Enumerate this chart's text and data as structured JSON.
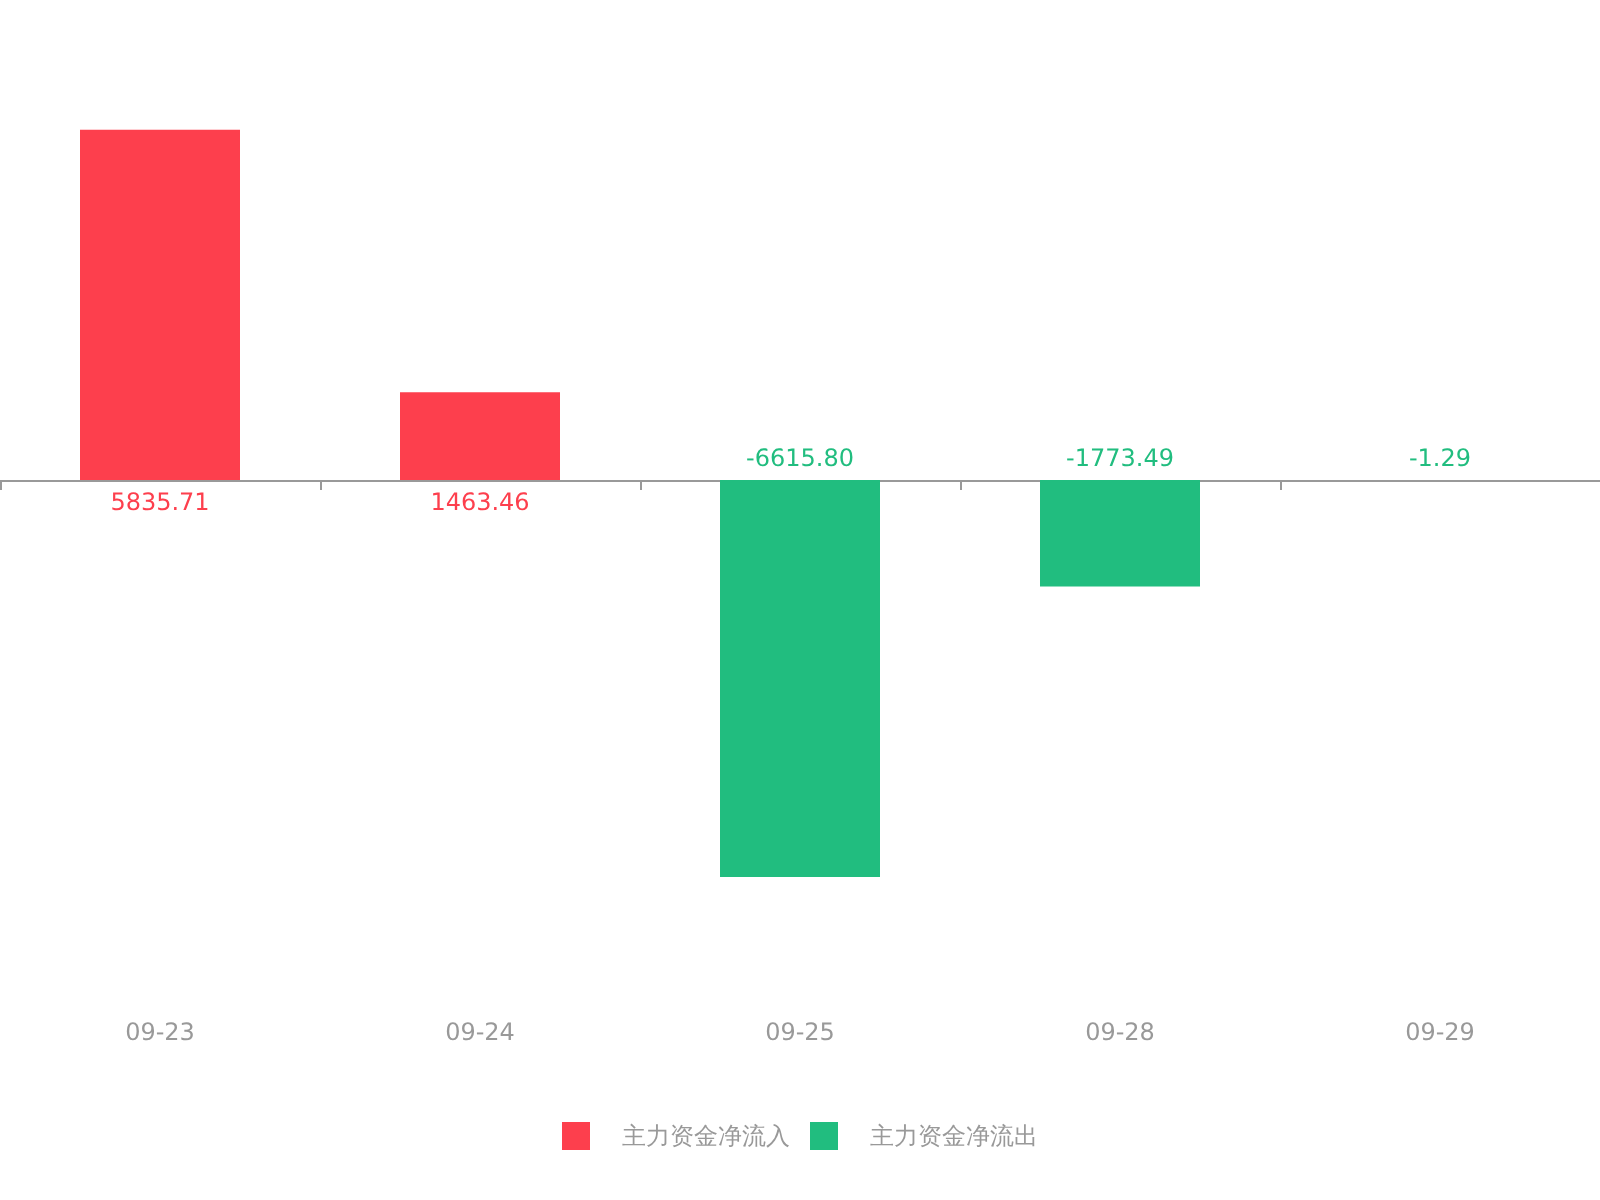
{
  "chart_data": {
    "type": "bar",
    "categories": [
      "09-23",
      "09-24",
      "09-25",
      "09-28",
      "09-29"
    ],
    "series": [
      {
        "name": "主力资金净流入",
        "color": "#fd3f4d",
        "values": [
          5835.71,
          1463.46,
          null,
          null,
          null
        ],
        "value_labels": [
          "5835.71",
          "1463.46",
          null,
          null,
          null
        ]
      },
      {
        "name": "主力资金净流出",
        "color": "#21bd7f",
        "values": [
          null,
          null,
          -6615.8,
          -1773.49,
          -1.29
        ],
        "value_labels": [
          null,
          null,
          "-6615.80",
          "-1773.49",
          "-1.29"
        ]
      }
    ],
    "stacked": true,
    "legend": "bottom"
  }
}
